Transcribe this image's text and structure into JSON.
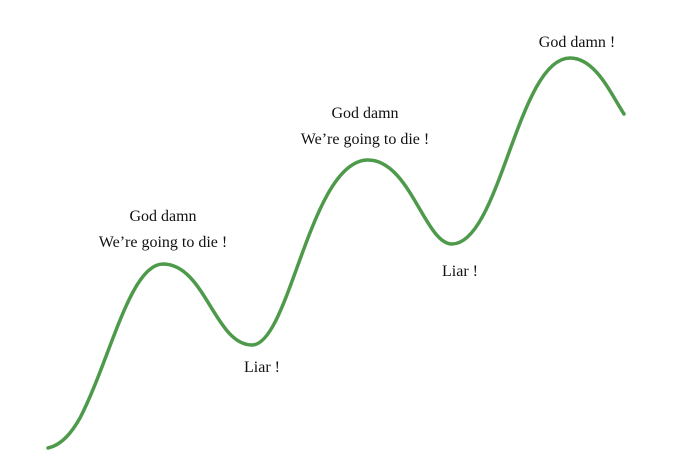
{
  "colors": {
    "curve": "#4e9a4b",
    "text": "#111111",
    "background": "#ffffff"
  },
  "annotations": {
    "peak_1": {
      "line_1": "God damn",
      "line_2": "We’re going to die !"
    },
    "trough_1": {
      "line_1": "Liar !"
    },
    "peak_2": {
      "line_1": "God damn",
      "line_2": "We’re going to die !"
    },
    "trough_2": {
      "line_1": "Liar !"
    },
    "peak_3": {
      "line_1": "God damn !"
    }
  }
}
